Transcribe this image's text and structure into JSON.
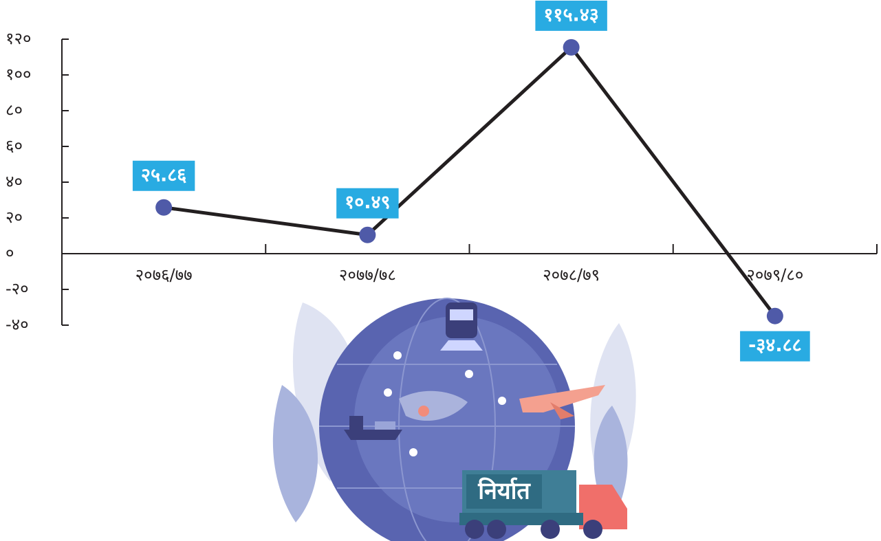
{
  "chart_data": {
    "type": "line",
    "categories": [
      "२०७६/७७",
      "२०७७/७८",
      "२०७८/७९",
      "२०७९/८०"
    ],
    "values": [
      25.86,
      10.49,
      115.43,
      -34.88
    ],
    "value_labels": [
      "२५.८६",
      "१०.४९",
      "११५.४३",
      "-३४.८८"
    ],
    "color": "#231f20",
    "marker_color": "#4f5aa8",
    "label_color": "#29abe2",
    "ylim": [
      -40,
      120
    ],
    "yticks": [
      {
        "value": -40,
        "label": "-४०"
      },
      {
        "value": -20,
        "label": "-२०"
      },
      {
        "value": 0,
        "label": "०"
      },
      {
        "value": 20,
        "label": "२०"
      },
      {
        "value": 40,
        "label": "४०"
      },
      {
        "value": 60,
        "label": "६०"
      },
      {
        "value": 80,
        "label": "८०"
      },
      {
        "value": 100,
        "label": "१००"
      },
      {
        "value": 120,
        "label": "१२०"
      }
    ]
  },
  "illustration": {
    "label": "निर्यात"
  }
}
